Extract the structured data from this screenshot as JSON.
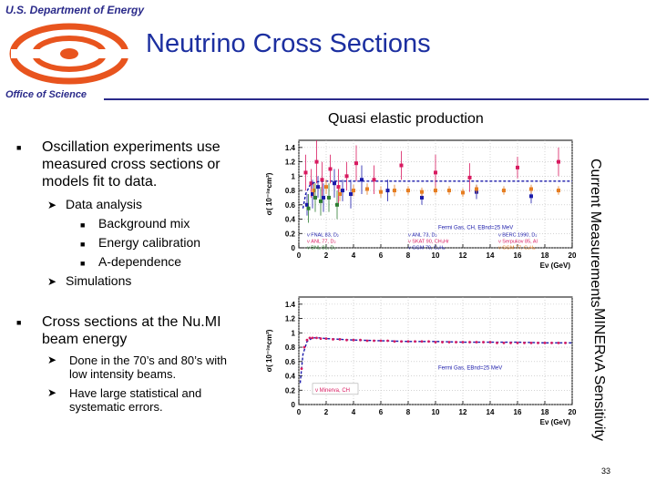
{
  "header": {
    "agency": "U.S. Department of Energy",
    "title": "Neutrino Cross Sections",
    "office": "Office of Science",
    "logo_color": "#e8541e"
  },
  "subtitle": "Quasi elastic production",
  "bullets": [
    {
      "text": "Oscillation experiments use measured cross sections or models fit to data.",
      "items": [
        {
          "text": "Data analysis",
          "subitems": [
            "Background mix",
            "Energy calibration",
            "A-dependence"
          ]
        },
        {
          "text": "Simulations",
          "subitems": []
        }
      ]
    },
    {
      "text": "Cross sections at the Nu.MI beam energy",
      "items": [
        {
          "text": "Done in the 70’s and 80’s with low intensity beams.",
          "subitems": []
        },
        {
          "text": "Have large statistical and systematic errors.",
          "subitems": []
        }
      ]
    }
  ],
  "side_labels": {
    "top": "Current Measurements",
    "bottom": "MINERvA Sensitivity"
  },
  "page_number": "33",
  "chart_data": [
    {
      "type": "scatter",
      "title": "",
      "ylabel": "σ( 10⁻³⁸cm²)",
      "xlabel": "Eν (GeV)",
      "xlim": [
        0,
        20
      ],
      "ylim": [
        0,
        1.5
      ],
      "xticks": [
        "0",
        "2",
        "4",
        "6",
        "8",
        "10",
        "12",
        "14",
        "16",
        "18",
        "20"
      ],
      "yticks": [
        "0",
        "0.2",
        "0.4",
        "0.6",
        "0.8",
        "1",
        "1.2",
        "1.4"
      ],
      "model_label": "Fermi Gas, CH, EBnd=25 MeV",
      "model_curve": {
        "x": [
          0.3,
          0.5,
          0.8,
          1.2,
          2,
          3,
          4,
          6,
          8,
          10,
          14,
          20
        ],
        "y": [
          0.55,
          0.75,
          0.87,
          0.92,
          0.93,
          0.93,
          0.93,
          0.93,
          0.93,
          0.93,
          0.93,
          0.93
        ]
      },
      "legend": [
        {
          "label": "ν FNAL 83, D₂",
          "color": "#1a1aaa"
        },
        {
          "label": "ν ANL 77, D₂",
          "color": "#d81b60"
        },
        {
          "label": "ν BNL 81, D₂",
          "color": "#2e7d32"
        },
        {
          "label": "ν ANL 73, D₂",
          "color": "#1a1aaa"
        },
        {
          "label": "ν SKAT 90, CH₃Hr",
          "color": "#d81b60"
        },
        {
          "label": "ν GGM 79, C₃H₈",
          "color": "#1a1aaa"
        },
        {
          "label": "ν BERC 1990, D₂",
          "color": "#1a1aaa"
        },
        {
          "label": "ν Serpukov 85, Al",
          "color": "#d81b60"
        },
        {
          "label": "ν GGM 77, C₃H₈",
          "color": "#e67e22"
        }
      ],
      "series": [
        {
          "name": "Magenta points",
          "color": "#d81b60",
          "x": [
            0.5,
            0.9,
            1.3,
            1.7,
            2.3,
            2.9,
            3.5,
            4.2,
            5.5,
            7.5,
            10,
            12.5,
            16,
            19
          ],
          "y": [
            1.05,
            0.9,
            1.2,
            0.95,
            1.1,
            0.85,
            1.0,
            1.18,
            0.95,
            1.15,
            1.05,
            0.98,
            1.12,
            1.2
          ],
          "err": [
            0.25,
            0.2,
            0.3,
            0.25,
            0.2,
            0.25,
            0.2,
            0.25,
            0.2,
            0.2,
            0.25,
            0.2,
            0.15,
            0.2
          ]
        },
        {
          "name": "Blue points",
          "color": "#1a1aaa",
          "x": [
            0.6,
            1.0,
            1.4,
            1.8,
            2.6,
            3.2,
            3.8,
            4.6,
            6.5,
            9,
            13,
            17
          ],
          "y": [
            0.6,
            0.75,
            0.85,
            0.7,
            0.9,
            0.8,
            0.75,
            0.95,
            0.8,
            0.7,
            0.78,
            0.72
          ],
          "err": [
            0.15,
            0.2,
            0.15,
            0.2,
            0.2,
            0.15,
            0.2,
            0.2,
            0.15,
            0.1,
            0.1,
            0.1
          ]
        },
        {
          "name": "Orange points",
          "color": "#e67e22",
          "x": [
            1.1,
            2.0,
            3.0,
            4.0,
            5.0,
            6.0,
            7.0,
            8.0,
            9.0,
            10,
            11,
            12,
            13,
            15,
            17,
            19
          ],
          "y": [
            0.8,
            0.85,
            0.75,
            0.8,
            0.82,
            0.78,
            0.8,
            0.8,
            0.78,
            0.8,
            0.8,
            0.77,
            0.82,
            0.8,
            0.82,
            0.8
          ],
          "err": [
            0.1,
            0.1,
            0.1,
            0.08,
            0.08,
            0.08,
            0.08,
            0.06,
            0.06,
            0.06,
            0.06,
            0.06,
            0.06,
            0.06,
            0.06,
            0.06
          ]
        },
        {
          "name": "Green points",
          "color": "#2e7d32",
          "x": [
            0.7,
            1.2,
            1.6,
            2.2,
            2.8
          ],
          "y": [
            0.55,
            0.7,
            0.65,
            0.7,
            0.6
          ],
          "err": [
            0.2,
            0.2,
            0.2,
            0.2,
            0.2
          ]
        }
      ]
    },
    {
      "type": "scatter",
      "title": "",
      "ylabel": "σ( 10⁻³⁸cm²)",
      "xlabel": "Eν (GeV)",
      "xlim": [
        0,
        20
      ],
      "ylim": [
        0,
        1.5
      ],
      "xticks": [
        "0",
        "2",
        "4",
        "6",
        "8",
        "10",
        "12",
        "14",
        "16",
        "18",
        "20"
      ],
      "yticks": [
        "0",
        "0.2",
        "0.4",
        "0.6",
        "0.8",
        "1",
        "1.2",
        "1.4"
      ],
      "model_label": "Fermi Gas, EBnd=25 MeV",
      "series_label": "ν Minerva, CH",
      "model_curve": {
        "x": [
          0.1,
          0.3,
          0.6,
          1.0,
          1.5,
          2,
          3,
          4,
          6,
          8,
          10,
          12,
          14,
          16,
          18,
          20
        ],
        "y": [
          0.3,
          0.7,
          0.88,
          0.93,
          0.93,
          0.92,
          0.91,
          0.9,
          0.89,
          0.88,
          0.88,
          0.87,
          0.87,
          0.87,
          0.86,
          0.86
        ]
      },
      "series": [
        {
          "name": "ν Minerva, CH",
          "color": "#d81b60",
          "x": [
            0.2,
            0.4,
            0.6,
            0.8,
            1.0,
            1.3,
            1.6,
            2.0,
            2.5,
            3,
            3.5,
            4,
            4.5,
            5,
            5.5,
            6,
            6.5,
            7,
            7.5,
            8,
            8.5,
            9,
            9.5,
            10,
            10.5,
            11,
            11.5,
            12,
            12.5,
            13,
            13.5,
            14,
            14.5,
            15,
            15.5,
            16,
            16.5,
            17,
            17.5,
            18,
            18.5,
            19,
            19.5
          ],
          "y": [
            0.5,
            0.8,
            0.9,
            0.93,
            0.93,
            0.93,
            0.92,
            0.92,
            0.91,
            0.91,
            0.9,
            0.9,
            0.9,
            0.89,
            0.89,
            0.89,
            0.89,
            0.88,
            0.88,
            0.88,
            0.88,
            0.88,
            0.88,
            0.87,
            0.87,
            0.87,
            0.87,
            0.87,
            0.87,
            0.87,
            0.87,
            0.87,
            0.86,
            0.86,
            0.86,
            0.86,
            0.86,
            0.86,
            0.86,
            0.86,
            0.86,
            0.86,
            0.86
          ]
        }
      ]
    }
  ]
}
